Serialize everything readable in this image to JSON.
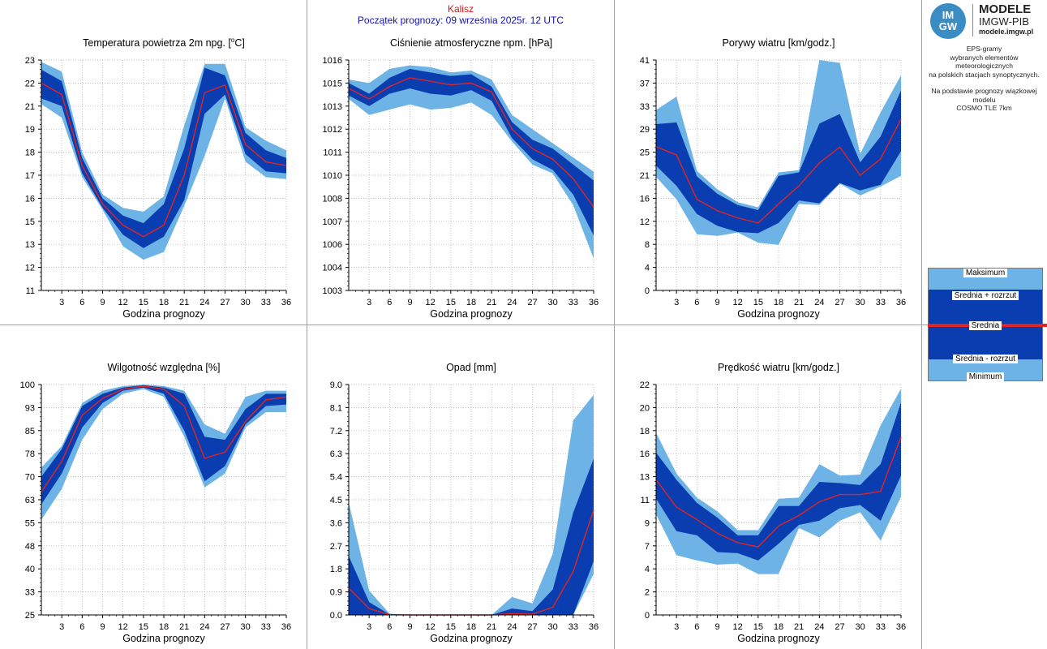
{
  "header": {
    "station": "Kalisz",
    "forecast_start": "Początek prognozy: 09 września 2025r. 12 UTC"
  },
  "logo": {
    "mark_top": "IM",
    "mark_bottom": "GW",
    "title": "MODELE",
    "subtitle": "IMGW-PIB",
    "url": "modele.imgw.pl"
  },
  "description": {
    "line1": "EPS-gramy",
    "line2": "wybranych elementów meteorologicznych",
    "line3": "na polskich stacjach  synoptycznych.",
    "line4": "Na podstawie prognozy wiązkowej modelu",
    "line5": "COSMO TLE 7km"
  },
  "legend": {
    "max": "Maksimum",
    "mean_plus": "Średnia + rozrzut",
    "mean": "Średnia",
    "mean_minus": "Średnia - rozrzut",
    "min": "Minimum"
  },
  "colors": {
    "outer_band": "#6eb3e6",
    "inner_band": "#0a3eb0",
    "mean_line": "#e02424",
    "axis": "#000000",
    "grid": "#a8a8a8",
    "frame": "#a0a0a0"
  },
  "chart_data": [
    {
      "type": "area",
      "title": "Temperatura powietrza 2m npg. [",
      "title_sup": "o",
      "title_suffix": "C]",
      "xlabel": "Godzina prognozy",
      "ylim": [
        11,
        23
      ],
      "yticks": [
        "11",
        "12",
        "13",
        "15",
        "16",
        "17",
        "18",
        "19",
        "21",
        "22",
        "23"
      ],
      "xlim": [
        0,
        36
      ],
      "xticks": [
        3,
        6,
        9,
        12,
        15,
        18,
        21,
        24,
        27,
        30,
        33,
        36
      ],
      "x": [
        0,
        3,
        6,
        9,
        12,
        15,
        18,
        21,
        24,
        27,
        30,
        33,
        36
      ],
      "series": [
        {
          "role": "max",
          "values": [
            22.9,
            22.4,
            18.2,
            16.0,
            15.3,
            15.1,
            15.9,
            19.6,
            22.8,
            22.8,
            19.5,
            18.8,
            18.3
          ]
        },
        {
          "role": "mean_plus",
          "values": [
            22.5,
            21.9,
            17.9,
            15.8,
            14.9,
            14.5,
            15.5,
            18.4,
            22.6,
            22.2,
            19.2,
            18.3,
            17.9
          ]
        },
        {
          "role": "mean",
          "values": [
            21.8,
            21.2,
            17.5,
            15.5,
            14.4,
            13.8,
            14.4,
            17.0,
            21.3,
            21.7,
            18.6,
            17.7,
            17.5
          ]
        },
        {
          "role": "mean_minus",
          "values": [
            21.0,
            20.6,
            17.1,
            15.3,
            13.9,
            13.2,
            13.8,
            15.7,
            20.2,
            21.2,
            18.1,
            17.2,
            17.1
          ]
        },
        {
          "role": "min",
          "values": [
            20.7,
            20.0,
            16.9,
            15.2,
            13.3,
            12.6,
            13.0,
            15.4,
            18.0,
            21.0,
            17.7,
            16.9,
            16.8
          ]
        }
      ]
    },
    {
      "type": "area",
      "title": "Ciśnienie atmosferyczne npm. [hPa]",
      "xlabel": "Godzina prognozy",
      "ylim": [
        1003,
        1016
      ],
      "yticks": [
        "1003",
        "1004",
        "1006",
        "1007",
        "1008",
        "1010",
        "1011",
        "1012",
        "1013",
        "1015",
        "1016"
      ],
      "xlim": [
        0,
        36
      ],
      "xticks": [
        3,
        6,
        9,
        12,
        15,
        18,
        21,
        24,
        27,
        30,
        33,
        36
      ],
      "x": [
        0,
        3,
        6,
        9,
        12,
        15,
        18,
        21,
        24,
        27,
        30,
        33,
        36
      ],
      "series": [
        {
          "role": "max",
          "values": [
            1014.9,
            1014.7,
            1015.5,
            1015.7,
            1015.6,
            1015.3,
            1015.4,
            1014.9,
            1012.9,
            1012.1,
            1011.3,
            1010.5,
            1009.7
          ]
        },
        {
          "role": "mean_plus",
          "values": [
            1014.7,
            1014.1,
            1015.0,
            1015.5,
            1015.3,
            1015.1,
            1015.2,
            1014.5,
            1012.5,
            1011.5,
            1011.0,
            1010.1,
            1009.2
          ]
        },
        {
          "role": "mean",
          "values": [
            1014.4,
            1013.8,
            1014.5,
            1015.0,
            1014.8,
            1014.6,
            1014.7,
            1014.2,
            1012.1,
            1011.0,
            1010.4,
            1009.3,
            1007.7
          ]
        },
        {
          "role": "mean_minus",
          "values": [
            1014.0,
            1013.4,
            1014.1,
            1014.4,
            1014.1,
            1014.0,
            1014.3,
            1013.7,
            1011.6,
            1010.4,
            1009.8,
            1008.4,
            1006.1
          ]
        },
        {
          "role": "min",
          "values": [
            1013.8,
            1012.9,
            1013.2,
            1013.5,
            1013.2,
            1013.3,
            1013.6,
            1012.9,
            1011.4,
            1010.1,
            1009.6,
            1007.8,
            1004.8
          ]
        }
      ]
    },
    {
      "type": "area",
      "title": "Porywy wiatru [km/godz.]",
      "xlabel": "Godzina prognozy",
      "ylim": [
        0,
        41
      ],
      "yticks": [
        "0",
        "4",
        "8",
        "12",
        "16",
        "21",
        "25",
        "29",
        "33",
        "37",
        "41"
      ],
      "xlim": [
        0,
        36
      ],
      "xticks": [
        3,
        6,
        9,
        12,
        15,
        18,
        21,
        24,
        27,
        30,
        33,
        36
      ],
      "x": [
        0,
        3,
        6,
        9,
        12,
        15,
        18,
        21,
        24,
        27,
        30,
        33,
        36
      ],
      "series": [
        {
          "role": "max",
          "values": [
            32.1,
            34.5,
            21.3,
            18.0,
            15.7,
            14.8,
            21.0,
            21.4,
            41.0,
            40.5,
            24.3,
            31.7,
            38.3
          ]
        },
        {
          "role": "mean_plus",
          "values": [
            29.6,
            29.9,
            20.3,
            17.2,
            15.2,
            14.3,
            20.4,
            21.0,
            29.7,
            31.4,
            22.8,
            27.4,
            35.6
          ]
        },
        {
          "role": "mean",
          "values": [
            25.6,
            24.1,
            16.2,
            14.2,
            12.9,
            12.0,
            15.4,
            18.6,
            22.7,
            25.5,
            20.5,
            23.4,
            30.5
          ]
        },
        {
          "role": "mean_minus",
          "values": [
            22.2,
            18.6,
            13.6,
            11.5,
            10.4,
            10.2,
            12.0,
            16.0,
            15.5,
            19.1,
            17.8,
            18.8,
            24.8
          ]
        },
        {
          "role": "min",
          "values": [
            20.2,
            16.2,
            10.0,
            9.7,
            10.3,
            8.5,
            8.1,
            15.4,
            15.2,
            19.0,
            16.9,
            18.5,
            20.4
          ]
        }
      ]
    },
    {
      "type": "area",
      "title": "Wilgotność względna [%]",
      "xlabel": "Godzina prognozy",
      "ylim": [
        25,
        100
      ],
      "yticks": [
        "25",
        "33",
        "40",
        "48",
        "55",
        "63",
        "70",
        "78",
        "85",
        "93",
        "100"
      ],
      "xlim": [
        0,
        36
      ],
      "xticks": [
        3,
        6,
        9,
        12,
        15,
        18,
        21,
        24,
        27,
        30,
        33,
        36
      ],
      "x": [
        0,
        3,
        6,
        9,
        12,
        15,
        18,
        21,
        24,
        27,
        30,
        33,
        36
      ],
      "series": [
        {
          "role": "max",
          "values": [
            73,
            80,
            94,
            98,
            99.5,
            100,
            99.5,
            98,
            87,
            84,
            96,
            98,
            98
          ]
        },
        {
          "role": "mean_plus",
          "values": [
            70,
            79,
            93,
            97,
            99,
            99.8,
            99,
            97,
            83,
            82,
            92,
            97,
            97
          ]
        },
        {
          "role": "mean",
          "values": [
            65,
            75,
            90,
            95.5,
            98.5,
            99.5,
            98.5,
            93,
            76,
            78,
            88,
            95,
            96
          ]
        },
        {
          "role": "mean_minus",
          "values": [
            61,
            71,
            86,
            94,
            98,
            99,
            97,
            85,
            68.5,
            73.5,
            87,
            93,
            93.5
          ]
        },
        {
          "role": "min",
          "values": [
            56,
            66,
            82,
            92,
            97,
            98.5,
            96,
            83,
            66.5,
            71,
            86,
            91,
            91
          ]
        }
      ]
    },
    {
      "type": "area",
      "title": "Opad [mm]",
      "xlabel": "Godzina prognozy",
      "ylim": [
        0,
        9
      ],
      "yticks": [
        "0.0",
        "0.9",
        "1.8",
        "2.7",
        "3.6",
        "4.5",
        "5.4",
        "6.3",
        "7.2",
        "8.1",
        "9.0"
      ],
      "xlim": [
        0,
        36
      ],
      "xticks": [
        3,
        6,
        9,
        12,
        15,
        18,
        21,
        24,
        27,
        30,
        33,
        36
      ],
      "x": [
        0,
        3,
        6,
        9,
        12,
        15,
        18,
        21,
        24,
        27,
        30,
        33,
        36
      ],
      "series": [
        {
          "role": "max",
          "values": [
            4.4,
            0.95,
            0.05,
            0,
            0,
            0,
            0,
            0,
            0.7,
            0.45,
            2.4,
            7.6,
            8.6
          ]
        },
        {
          "role": "mean_plus",
          "values": [
            2.3,
            0.5,
            0.02,
            0,
            0,
            0,
            0,
            0,
            0.25,
            0.15,
            1.0,
            4.0,
            6.1
          ]
        },
        {
          "role": "mean",
          "values": [
            1.05,
            0.25,
            0.01,
            0,
            0,
            0,
            0,
            0,
            0.05,
            0.03,
            0.3,
            1.7,
            4.1
          ]
        },
        {
          "role": "mean_minus",
          "values": [
            0,
            0,
            0,
            0,
            0,
            0,
            0,
            0,
            0,
            0,
            0,
            0,
            2.1
          ]
        },
        {
          "role": "min",
          "values": [
            0,
            0,
            0,
            0,
            0,
            0,
            0,
            0,
            0,
            0,
            0,
            0,
            1.6
          ]
        }
      ]
    },
    {
      "type": "area",
      "title": "Prędkość wiatru [km/godz.]",
      "xlabel": "Godzina prognozy",
      "ylim": [
        0,
        22
      ],
      "yticks": [
        "0",
        "2",
        "4",
        "7",
        "9",
        "11",
        "13",
        "16",
        "18",
        "20",
        "22"
      ],
      "xlim": [
        0,
        36
      ],
      "xticks": [
        3,
        6,
        9,
        12,
        15,
        18,
        21,
        24,
        27,
        30,
        33,
        36
      ],
      "x": [
        0,
        3,
        6,
        9,
        12,
        15,
        18,
        21,
        24,
        27,
        30,
        33,
        36
      ],
      "series": [
        {
          "role": "max",
          "values": [
            17.4,
            13.5,
            11.2,
            9.9,
            8.1,
            8.1,
            11.1,
            11.2,
            14.4,
            13.3,
            13.4,
            18.1,
            21.6
          ]
        },
        {
          "role": "mean_plus",
          "values": [
            15.5,
            12.9,
            10.7,
            9.3,
            7.6,
            7.6,
            10.4,
            10.4,
            12.7,
            12.6,
            12.4,
            14.4,
            20.3
          ]
        },
        {
          "role": "mean",
          "values": [
            12.9,
            10.3,
            9.1,
            7.8,
            6.9,
            6.5,
            8.5,
            9.5,
            10.8,
            11.5,
            11.5,
            11.8,
            17.0
          ]
        },
        {
          "role": "mean_minus",
          "values": [
            11.1,
            8.0,
            7.6,
            6.0,
            5.9,
            5.2,
            6.8,
            8.6,
            9.0,
            10.2,
            10.5,
            9.0,
            13.3
          ]
        },
        {
          "role": "min",
          "values": [
            9.6,
            5.7,
            5.2,
            4.8,
            4.9,
            3.9,
            3.9,
            8.3,
            7.4,
            9.0,
            9.8,
            7.1,
            11.3
          ]
        }
      ]
    }
  ]
}
